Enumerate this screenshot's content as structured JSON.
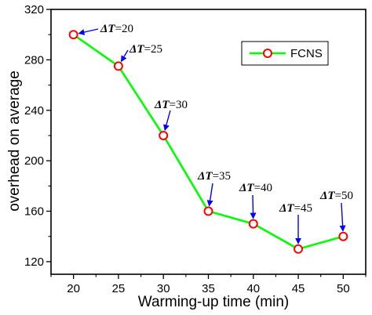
{
  "chart_data": {
    "type": "line",
    "xlabel": "Warming-up time (min)",
    "ylabel": "overhead on average",
    "xlim": [
      17.5,
      52.5
    ],
    "ylim": [
      110,
      320
    ],
    "xticks": [
      20,
      25,
      30,
      35,
      40,
      45,
      50
    ],
    "yticks": [
      120,
      160,
      200,
      240,
      280,
      320
    ],
    "grid": false,
    "legend_position": "top-right",
    "series": [
      {
        "name": "FCNS",
        "color": "#00ff00",
        "marker_color": "#ff0000",
        "marker": "open-circle",
        "x": [
          20,
          25,
          30,
          35,
          40,
          45,
          50
        ],
        "y": [
          300,
          275,
          220,
          160,
          150,
          130,
          140
        ]
      }
    ],
    "annotations": [
      {
        "prefix": "ΔT",
        "value": "20"
      },
      {
        "prefix": "ΔT",
        "value": "25"
      },
      {
        "prefix": "ΔT",
        "value": "30"
      },
      {
        "prefix": "ΔT",
        "value": "35"
      },
      {
        "prefix": "ΔT",
        "value": "40"
      },
      {
        "prefix": "ΔT",
        "value": "45"
      },
      {
        "prefix": "ΔT",
        "value": "50"
      }
    ],
    "arrow_color": "#0000ff"
  }
}
